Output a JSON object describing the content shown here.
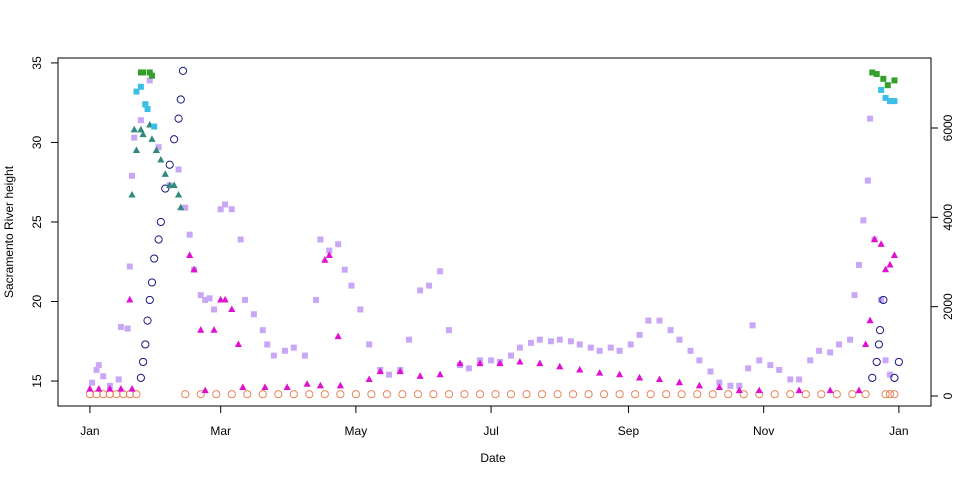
{
  "chart_data": {
    "type": "scatter",
    "x_label": "Date",
    "y_label": "Sacramento River height",
    "xlim": [
      -13.4,
      380.5
    ],
    "xticks": [
      {
        "value": 1,
        "label": "Jan"
      },
      {
        "value": 60,
        "label": "Mar"
      },
      {
        "value": 121,
        "label": "May"
      },
      {
        "value": 182,
        "label": "Jul"
      },
      {
        "value": 244,
        "label": "Sep"
      },
      {
        "value": 305,
        "label": "Nov"
      },
      {
        "value": 366,
        "label": "Jan"
      }
    ],
    "ylim": [
      13.43,
      35.31
    ],
    "yticks": [
      15,
      20,
      25,
      30,
      35
    ],
    "y2lim": [
      -224,
      7567
    ],
    "y2ticks": [
      0,
      2000,
      4000,
      6000
    ],
    "series": [
      {
        "color": "#e8845a",
        "marker": "circle-open",
        "axis": "y2",
        "x": [
          1,
          4,
          7,
          10,
          13,
          16,
          19,
          22,
          44,
          51,
          58,
          65,
          72,
          79,
          86,
          93,
          100,
          107,
          114,
          121,
          128,
          135,
          142,
          149,
          156,
          163,
          170,
          177,
          184,
          191,
          198,
          205,
          212,
          219,
          226,
          233,
          240,
          247,
          254,
          261,
          268,
          275,
          282,
          289,
          296,
          303,
          310,
          317,
          324,
          331,
          338,
          345,
          351,
          360,
          362,
          364
        ],
        "values": [
          40,
          40,
          40,
          40,
          40,
          40,
          40,
          40,
          40,
          40,
          40,
          40,
          40,
          40,
          40,
          40,
          40,
          40,
          40,
          40,
          40,
          40,
          40,
          40,
          40,
          40,
          40,
          40,
          40,
          40,
          40,
          40,
          40,
          40,
          40,
          40,
          40,
          40,
          40,
          40,
          40,
          40,
          40,
          40,
          40,
          40,
          40,
          40,
          40,
          40,
          40,
          40,
          40,
          40,
          40,
          40
        ]
      },
      {
        "color": "#c9a7f7",
        "marker": "square",
        "axis": "y",
        "x": [
          2,
          4,
          5,
          7,
          10,
          14,
          15,
          18,
          19,
          20,
          21,
          24,
          26,
          28,
          32,
          37,
          41,
          44,
          46,
          48,
          51,
          53,
          55,
          57,
          60,
          62,
          65,
          69,
          71,
          75,
          79,
          81,
          84,
          89,
          93,
          98,
          103,
          105,
          109,
          113,
          116,
          119,
          123,
          127,
          132,
          136,
          141,
          145,
          150,
          154,
          159,
          163,
          168,
          172,
          177,
          182,
          186,
          191,
          195,
          200,
          204,
          209,
          213,
          218,
          222,
          227,
          231,
          236,
          240,
          245,
          249,
          253,
          258,
          263,
          267,
          272,
          276,
          281,
          285,
          290,
          294,
          298,
          300,
          303,
          308,
          312,
          317,
          321,
          326,
          330,
          335,
          339,
          344,
          346,
          348,
          350,
          352,
          353,
          355,
          358,
          360,
          362
        ],
        "values": [
          14.9,
          15.7,
          16.0,
          15.3,
          14.7,
          15.1,
          18.4,
          18.3,
          22.2,
          27.9,
          30.3,
          31.4,
          32.4,
          33.9,
          29.7,
          27.3,
          28.3,
          25.9,
          24.2,
          22.0,
          20.4,
          20.1,
          20.2,
          19.5,
          25.8,
          26.1,
          25.8,
          23.9,
          20.1,
          19.2,
          18.2,
          17.3,
          16.6,
          16.9,
          17.1,
          16.6,
          20.1,
          23.9,
          23.2,
          23.6,
          22.0,
          21.0,
          19.5,
          17.3,
          15.7,
          15.4,
          15.7,
          17.6,
          20.7,
          21.0,
          21.9,
          18.2,
          16.0,
          15.8,
          16.3,
          16.3,
          16.2,
          16.6,
          17.1,
          17.4,
          17.6,
          17.5,
          17.6,
          17.5,
          17.3,
          17.1,
          16.9,
          17.1,
          16.9,
          17.3,
          17.9,
          18.8,
          18.8,
          18.2,
          17.6,
          16.9,
          16.3,
          15.6,
          14.9,
          14.7,
          14.7,
          15.8,
          18.5,
          16.3,
          16.0,
          15.7,
          15.1,
          15.1,
          16.3,
          16.9,
          16.8,
          17.3,
          17.6,
          20.4,
          22.3,
          25.1,
          27.6,
          31.5,
          23.9,
          20.1,
          16.3,
          15.4
        ]
      },
      {
        "color": "#e010d0",
        "marker": "triangle",
        "axis": "y",
        "x": [
          1,
          5,
          10,
          15,
          19,
          20,
          46,
          48,
          51,
          53,
          57,
          60,
          62,
          65,
          68,
          70,
          80,
          90,
          99,
          105,
          107,
          109,
          113,
          114,
          127,
          132,
          141,
          150,
          159,
          168,
          177,
          186,
          195,
          204,
          213,
          222,
          231,
          240,
          249,
          258,
          267,
          276,
          285,
          294,
          303,
          321,
          335,
          348,
          351,
          353,
          355,
          358,
          360,
          362,
          364
        ],
        "values": [
          14.5,
          14.5,
          14.5,
          14.5,
          20.1,
          14.5,
          22.9,
          22.0,
          18.2,
          14.4,
          18.2,
          20.1,
          20.1,
          19.5,
          17.3,
          14.6,
          14.6,
          14.6,
          14.8,
          14.7,
          22.6,
          22.9,
          17.8,
          14.7,
          15.1,
          15.6,
          15.6,
          15.3,
          15.4,
          16.1,
          16.1,
          16.1,
          16.2,
          16.1,
          15.9,
          15.7,
          15.5,
          15.4,
          15.2,
          15.1,
          14.9,
          14.7,
          14.6,
          14.4,
          14.4,
          14.4,
          14.4,
          14.4,
          17.3,
          18.8,
          23.9,
          23.6,
          22.0,
          22.3,
          22.9
        ]
      },
      {
        "color": "#1a1a80",
        "marker": "circle-open",
        "axis": "y",
        "x": [
          24,
          25,
          26,
          27,
          28,
          29,
          30,
          32,
          33,
          35,
          37,
          39,
          41,
          42,
          43,
          354,
          356,
          357,
          357.5,
          359,
          364,
          366
        ],
        "values": [
          15.2,
          16.2,
          17.3,
          18.8,
          20.1,
          21.2,
          22.7,
          23.9,
          25.0,
          27.1,
          28.6,
          30.2,
          31.5,
          32.7,
          34.5,
          15.2,
          16.2,
          17.3,
          18.2,
          20.1,
          15.2,
          16.2
        ]
      },
      {
        "color": "#2e8b7e",
        "marker": "triangle",
        "axis": "y",
        "x": [
          20,
          21,
          22,
          24,
          25,
          28,
          29,
          31,
          33,
          35,
          37,
          39,
          41,
          42
        ],
        "values": [
          26.7,
          30.8,
          29.5,
          30.8,
          30.5,
          31.1,
          30.2,
          29.5,
          28.9,
          28.0,
          27.3,
          27.3,
          26.7,
          25.9
        ]
      },
      {
        "color": "#3bbfe6",
        "marker": "square",
        "axis": "y",
        "x": [
          22,
          24,
          26,
          27,
          30,
          358,
          360,
          362,
          364
        ],
        "values": [
          33.2,
          33.5,
          32.4,
          32.1,
          31.0,
          33.3,
          32.8,
          32.6,
          32.6
        ]
      },
      {
        "color": "#33a02c",
        "marker": "square",
        "axis": "y",
        "x": [
          24,
          25,
          28,
          29,
          354,
          356,
          359,
          361,
          364
        ],
        "values": [
          34.4,
          34.4,
          34.4,
          34.2,
          34.4,
          34.3,
          34.0,
          33.6,
          33.9
        ]
      }
    ]
  }
}
